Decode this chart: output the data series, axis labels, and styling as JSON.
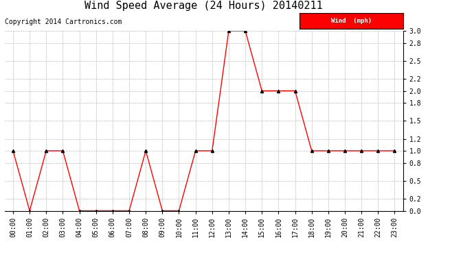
{
  "title": "Wind Speed Average (24 Hours) 20140211",
  "copyright": "Copyright 2014 Cartronics.com",
  "hours": [
    "00:00",
    "01:00",
    "02:00",
    "03:00",
    "04:00",
    "05:00",
    "06:00",
    "07:00",
    "08:00",
    "09:00",
    "10:00",
    "11:00",
    "12:00",
    "13:00",
    "14:00",
    "15:00",
    "16:00",
    "17:00",
    "18:00",
    "19:00",
    "20:00",
    "21:00",
    "22:00",
    "23:00"
  ],
  "values": [
    1.0,
    0.0,
    1.0,
    1.0,
    0.0,
    0.0,
    0.0,
    0.0,
    1.0,
    0.0,
    0.0,
    1.0,
    1.0,
    3.0,
    3.0,
    2.0,
    2.0,
    2.0,
    1.0,
    1.0,
    1.0,
    1.0,
    1.0,
    1.0
  ],
  "line_color": "red",
  "marker_color": "black",
  "marker_style": "^",
  "marker_size": 3,
  "ylim": [
    0.0,
    3.0
  ],
  "yticks": [
    0.0,
    0.2,
    0.5,
    0.8,
    1.0,
    1.2,
    1.5,
    1.8,
    2.0,
    2.2,
    2.5,
    2.8,
    3.0
  ],
  "bg_color": "white",
  "grid_color": "#bbbbbb",
  "legend_text": "Wind  (mph)",
  "legend_text_color": "white",
  "legend_bg": "red",
  "title_fontsize": 11,
  "copyright_fontsize": 7,
  "tick_fontsize": 7
}
